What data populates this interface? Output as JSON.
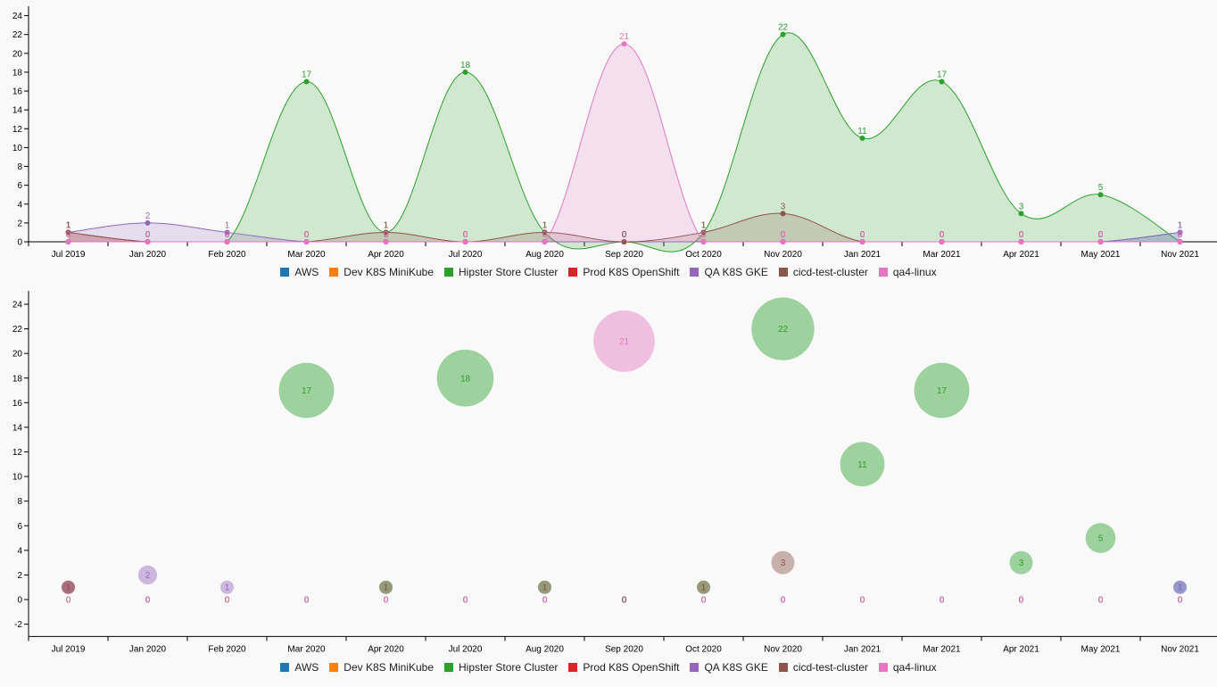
{
  "chart_data": [
    {
      "type": "area",
      "categories": [
        "Jul 2019",
        "Jan 2020",
        "Feb 2020",
        "Mar 2020",
        "Apr 2020",
        "Jul 2020",
        "Aug 2020",
        "Sep 2020",
        "Oct 2020",
        "Nov 2020",
        "Jan 2021",
        "Mar 2021",
        "Apr 2021",
        "May 2021",
        "Nov 2021"
      ],
      "ylim": [
        0,
        25
      ],
      "yticks": [
        0,
        2,
        4,
        6,
        8,
        10,
        12,
        14,
        16,
        18,
        20,
        22,
        24
      ],
      "legend_position": "bottom",
      "series": [
        {
          "name": "AWS",
          "color": "#1f77b4",
          "values": [
            0,
            0,
            0,
            0,
            0,
            0,
            0,
            0,
            0,
            0,
            0,
            0,
            0,
            0,
            1
          ]
        },
        {
          "name": "Dev K8S MiniKube",
          "color": "#ff7f0e",
          "values": [
            0,
            0,
            0,
            0,
            0,
            0,
            0,
            0,
            0,
            0,
            0,
            0,
            0,
            0,
            0
          ]
        },
        {
          "name": "Hipster Store Cluster",
          "color": "#2ca02c",
          "values": [
            0,
            0,
            0,
            17,
            1,
            18,
            1,
            0,
            1,
            22,
            11,
            17,
            3,
            5,
            0
          ]
        },
        {
          "name": "Prod K8S OpenShift",
          "color": "#d62728",
          "values": [
            1,
            0,
            0,
            0,
            0,
            0,
            0,
            0,
            0,
            0,
            0,
            0,
            0,
            0,
            0
          ]
        },
        {
          "name": "QA K8S GKE",
          "color": "#9467bd",
          "values": [
            1,
            2,
            1,
            0,
            0,
            0,
            0,
            0,
            0,
            0,
            0,
            0,
            0,
            0,
            1
          ]
        },
        {
          "name": "cicd-test-cluster",
          "color": "#8c564b",
          "values": [
            1,
            0,
            0,
            0,
            1,
            0,
            1,
            0,
            1,
            3,
            0,
            0,
            0,
            0,
            0
          ]
        },
        {
          "name": "qa4-linux",
          "color": "#e377c2",
          "values": [
            0,
            0,
            0,
            0,
            0,
            0,
            0,
            21,
            0,
            0,
            0,
            0,
            0,
            0,
            0
          ]
        }
      ]
    },
    {
      "type": "scatter",
      "categories": [
        "Jul 2019",
        "Jan 2020",
        "Feb 2020",
        "Mar 2020",
        "Apr 2020",
        "Jul 2020",
        "Aug 2020",
        "Sep 2020",
        "Oct 2020",
        "Nov 2020",
        "Jan 2021",
        "Mar 2021",
        "Apr 2021",
        "May 2021",
        "Nov 2021"
      ],
      "ylim": [
        -3,
        25
      ],
      "yticks": [
        -2,
        0,
        2,
        4,
        6,
        8,
        10,
        12,
        14,
        16,
        18,
        20,
        22,
        24
      ],
      "legend_position": "bottom",
      "series": [
        {
          "name": "AWS",
          "color": "#1f77b4",
          "values": [
            0,
            0,
            0,
            0,
            0,
            0,
            0,
            0,
            0,
            0,
            0,
            0,
            0,
            0,
            1
          ]
        },
        {
          "name": "Dev K8S MiniKube",
          "color": "#ff7f0e",
          "values": [
            0,
            0,
            0,
            0,
            0,
            0,
            0,
            0,
            0,
            0,
            0,
            0,
            0,
            0,
            0
          ]
        },
        {
          "name": "Hipster Store Cluster",
          "color": "#2ca02c",
          "values": [
            0,
            0,
            0,
            17,
            1,
            18,
            1,
            0,
            1,
            22,
            11,
            17,
            3,
            5,
            0
          ]
        },
        {
          "name": "Prod K8S OpenShift",
          "color": "#d62728",
          "values": [
            1,
            0,
            0,
            0,
            0,
            0,
            0,
            0,
            0,
            0,
            0,
            0,
            0,
            0,
            0
          ]
        },
        {
          "name": "QA K8S GKE",
          "color": "#9467bd",
          "values": [
            1,
            2,
            1,
            0,
            0,
            0,
            0,
            0,
            0,
            0,
            0,
            0,
            0,
            0,
            1
          ]
        },
        {
          "name": "cicd-test-cluster",
          "color": "#8c564b",
          "values": [
            1,
            0,
            0,
            0,
            1,
            0,
            1,
            0,
            1,
            3,
            0,
            0,
            0,
            0,
            0
          ]
        },
        {
          "name": "qa4-linux",
          "color": "#e377c2",
          "values": [
            0,
            0,
            0,
            0,
            0,
            0,
            0,
            21,
            0,
            0,
            0,
            0,
            0,
            0,
            0
          ]
        }
      ]
    }
  ]
}
